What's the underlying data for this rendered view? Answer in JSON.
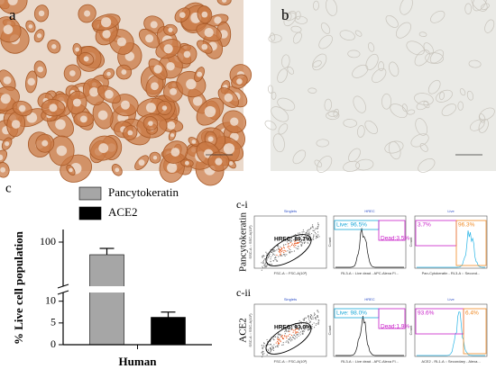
{
  "panel_labels": {
    "a": "a",
    "b": "b",
    "c": "c"
  },
  "chart_data": {
    "type": "bar",
    "y_label": "% Live cell population",
    "categories": [
      "Human"
    ],
    "series": [
      {
        "name": "Pancytokeratin",
        "color": "#a6a6a6",
        "values": [
          96
        ],
        "errors": [
          2
        ]
      },
      {
        "name": "ACE2",
        "color": "#000000",
        "values": [
          6.3
        ],
        "errors": [
          1.2
        ]
      }
    ],
    "axis_segments": [
      {
        "ylim": [
          0,
          12
        ],
        "yticks": [
          0,
          5,
          10
        ]
      },
      {
        "ylim": [
          86,
          104
        ],
        "yticks": [
          100
        ]
      }
    ],
    "legend": "top-left"
  },
  "flow_panels": [
    {
      "id": "c-i",
      "marker": "Pancytokeratin",
      "plots": [
        {
          "title": "Singlets",
          "x_label": "FSC-A :: FSC-A(10³)",
          "y_label": "SSC-A :: SSC-A(10³)",
          "gates": [
            "HREC: 89.7%"
          ]
        },
        {
          "title": "HREC",
          "x_label": "RL3-A :: Live dead - APC-Alexa Fl...",
          "y_label": "Count",
          "gates": [
            "Live: 96.5%",
            "Dead:3.5%"
          ]
        },
        {
          "title": "Live",
          "x_label": "Pan-Cytokeratin - RL3-A :: Second...",
          "y_label": "Count",
          "gates": [
            "3.7%",
            "96.3%"
          ]
        }
      ]
    },
    {
      "id": "c-ii",
      "marker": "ACE2",
      "plots": [
        {
          "title": "Singlets",
          "x_label": "FSC-A :: FSC-A(10³)",
          "y_label": "SSC-A :: SSC-A(10³)",
          "gates": [
            "HREC: 93.0%"
          ]
        },
        {
          "title": "HREC",
          "x_label": "RL3-A :: Live dead - APC-Alexa Fl...",
          "y_label": "Count",
          "gates": [
            "Live: 98.0%",
            "Dead:1.9%"
          ]
        },
        {
          "title": "Live",
          "x_label": "ACE2 - RL1-A :: Secondary - Alexa...",
          "y_label": "Count",
          "gates": [
            "93.6%",
            "6.4%"
          ]
        }
      ]
    }
  ]
}
